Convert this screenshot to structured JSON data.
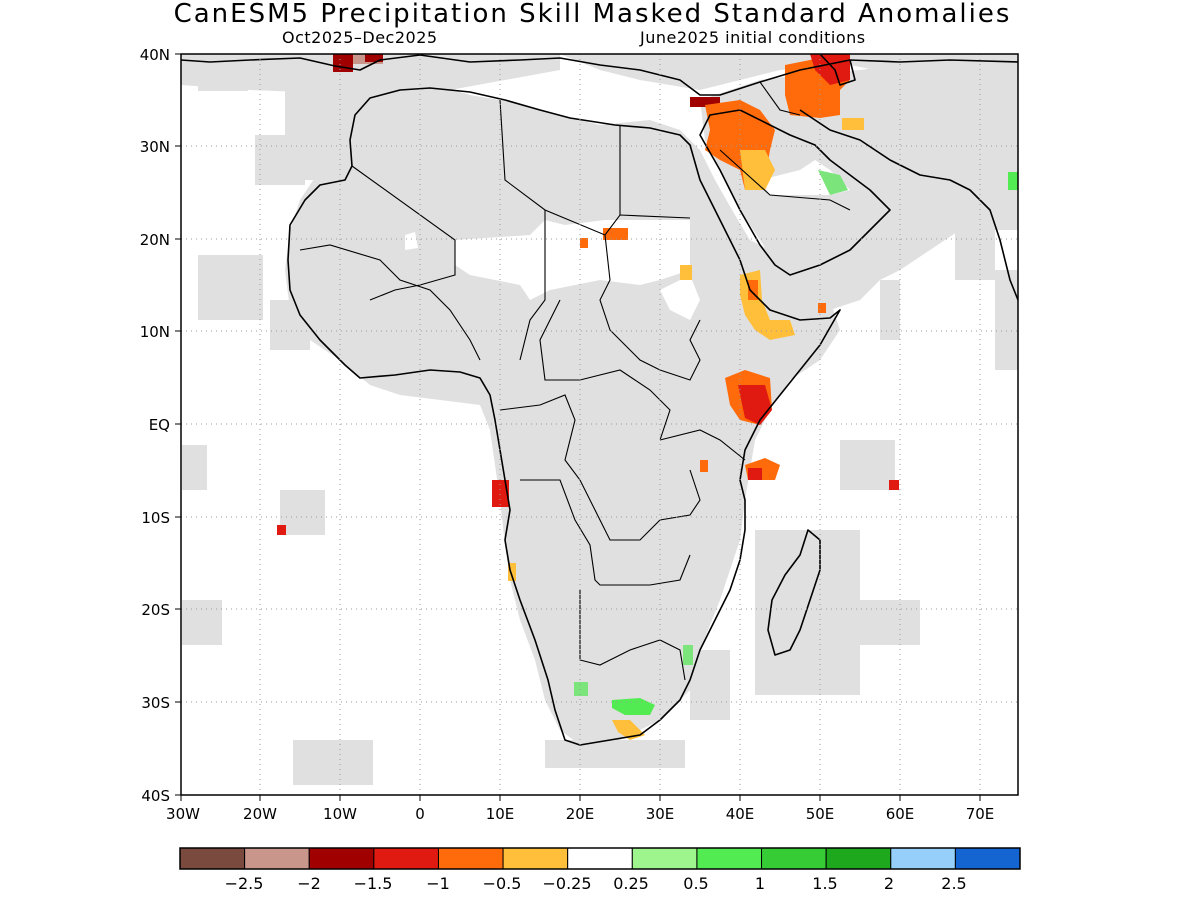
{
  "title": "CanESM5 Precipitation Skill Masked Standard Anomalies",
  "subtitle_left": "Oct2025–Dec2025",
  "subtitle_right": "June2025 initial conditions",
  "axes": {
    "lat_ticks": [
      "40N",
      "30N",
      "20N",
      "10N",
      "EQ",
      "10S",
      "20S",
      "30S",
      "40S"
    ],
    "lon_ticks": [
      "30W",
      "20W",
      "10W",
      "0",
      "10E",
      "20E",
      "30E",
      "40E",
      "50E",
      "60E",
      "70E"
    ],
    "lon_range": [
      -30,
      75
    ],
    "lat_range": [
      -40,
      40
    ],
    "grid": "dotted"
  },
  "colorbar": {
    "labels": [
      "−2.5",
      "−2",
      "−1.5",
      "−1",
      "−0.5",
      "−0.25",
      "0.25",
      "0.5",
      "1",
      "1.5",
      "2",
      "2.5"
    ],
    "colors": [
      "#7a4a3e",
      "#c8968a",
      "#a00000",
      "#e01a10",
      "#ff6a0a",
      "#ffbf3a",
      "#ffffff",
      "#9ef58e",
      "#52ec52",
      "#35cc35",
      "#1ea81e",
      "#96d0fa",
      "#1464d2"
    ]
  },
  "mask_color": "#e0e0e0",
  "anomaly_regions": [
    {
      "region": "Sudan / Red Sea",
      "color": "#ff6a0a"
    },
    {
      "region": "Middle East",
      "color": "#ff6a0a"
    },
    {
      "region": "East Africa Horn",
      "color": "#e01a10"
    },
    {
      "region": "Angola coast",
      "color": "#e01a10"
    },
    {
      "region": "South Africa",
      "color": "#52ec52"
    }
  ]
}
